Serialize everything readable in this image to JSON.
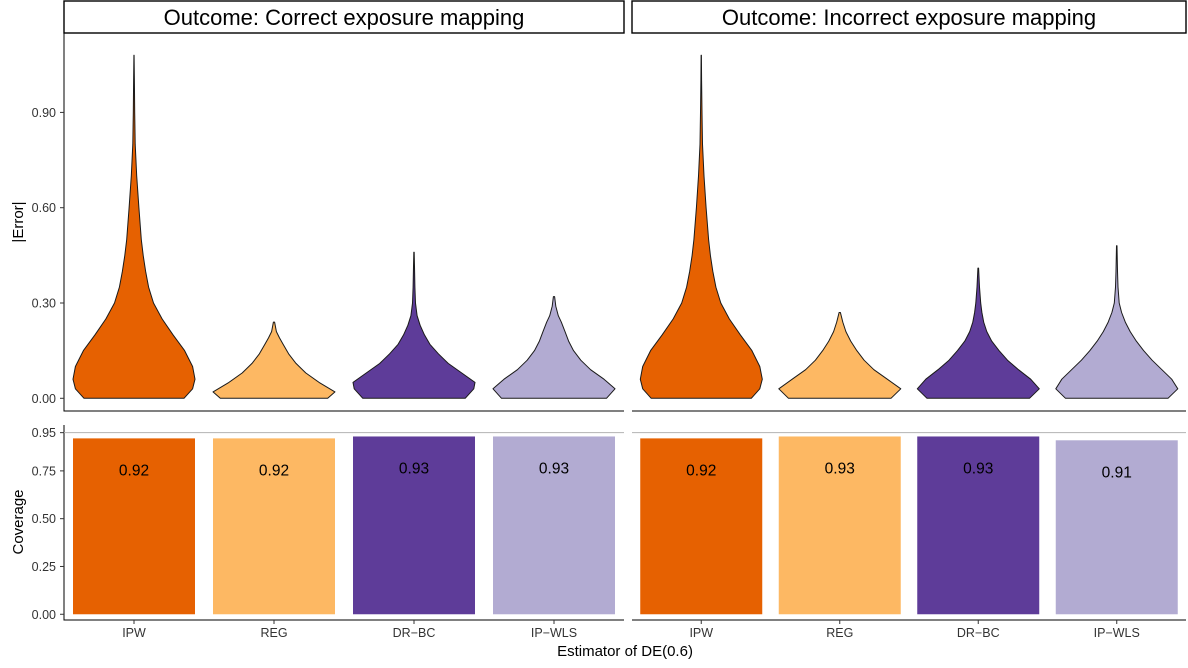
{
  "chart_data": {
    "type": "faceted violin and bar",
    "facets": [
      {
        "title": "Outcome: Correct exposure mapping"
      },
      {
        "title": "Outcome: Incorrect exposure mapping"
      }
    ],
    "categories": [
      "IPW",
      "REG",
      "DR−BC",
      "IP−WLS"
    ],
    "colors": [
      "#e66101",
      "#fdb863",
      "#5e3c99",
      "#b2abd2"
    ],
    "xlabel": "Estimator of DE(0.6)",
    "violin_panel": {
      "ylabel": "|Error|",
      "ylim": [
        -0.04,
        1.15
      ],
      "yticks": [
        "0.00",
        "0.30",
        "0.60",
        "0.90"
      ],
      "series": [
        [
          {
            "max": 1.08,
            "profile": [
              [
                0,
                0.82
              ],
              [
                0.03,
                0.96
              ],
              [
                0.06,
                1.0
              ],
              [
                0.1,
                0.96
              ],
              [
                0.15,
                0.83
              ],
              [
                0.2,
                0.64
              ],
              [
                0.25,
                0.46
              ],
              [
                0.3,
                0.32
              ],
              [
                0.35,
                0.24
              ],
              [
                0.4,
                0.19
              ],
              [
                0.45,
                0.15
              ],
              [
                0.5,
                0.12
              ],
              [
                0.6,
                0.08
              ],
              [
                0.7,
                0.045
              ],
              [
                0.8,
                0.02
              ],
              [
                0.9,
                0.012
              ],
              [
                1.0,
                0.006
              ],
              [
                1.08,
                0.002
              ]
            ]
          },
          {
            "max": 0.24,
            "profile": [
              [
                0,
                0.88
              ],
              [
                0.02,
                1.0
              ],
              [
                0.05,
                0.74
              ],
              [
                0.08,
                0.52
              ],
              [
                0.11,
                0.36
              ],
              [
                0.14,
                0.24
              ],
              [
                0.17,
                0.15
              ],
              [
                0.19,
                0.09
              ],
              [
                0.21,
                0.04
              ],
              [
                0.24,
                0.01
              ]
            ]
          },
          {
            "max": 0.46,
            "profile": [
              [
                0,
                0.84
              ],
              [
                0.03,
                0.98
              ],
              [
                0.05,
                1.0
              ],
              [
                0.08,
                0.78
              ],
              [
                0.11,
                0.56
              ],
              [
                0.14,
                0.4
              ],
              [
                0.17,
                0.26
              ],
              [
                0.2,
                0.17
              ],
              [
                0.23,
                0.1
              ],
              [
                0.26,
                0.05
              ],
              [
                0.3,
                0.025
              ],
              [
                0.35,
                0.015
              ],
              [
                0.4,
                0.01
              ],
              [
                0.46,
                0.004
              ]
            ]
          },
          {
            "max": 0.32,
            "profile": [
              [
                0,
                0.86
              ],
              [
                0.03,
                1.0
              ],
              [
                0.06,
                0.82
              ],
              [
                0.09,
                0.6
              ],
              [
                0.12,
                0.44
              ],
              [
                0.15,
                0.32
              ],
              [
                0.18,
                0.24
              ],
              [
                0.21,
                0.18
              ],
              [
                0.24,
                0.12
              ],
              [
                0.26,
                0.07
              ],
              [
                0.29,
                0.03
              ],
              [
                0.32,
                0.01
              ]
            ]
          }
        ],
        [
          {
            "max": 1.08,
            "profile": [
              [
                0,
                0.82
              ],
              [
                0.03,
                0.96
              ],
              [
                0.06,
                1.0
              ],
              [
                0.1,
                0.96
              ],
              [
                0.15,
                0.83
              ],
              [
                0.2,
                0.64
              ],
              [
                0.25,
                0.46
              ],
              [
                0.3,
                0.32
              ],
              [
                0.35,
                0.24
              ],
              [
                0.4,
                0.19
              ],
              [
                0.45,
                0.15
              ],
              [
                0.5,
                0.12
              ],
              [
                0.6,
                0.08
              ],
              [
                0.7,
                0.045
              ],
              [
                0.8,
                0.02
              ],
              [
                0.9,
                0.012
              ],
              [
                1.0,
                0.006
              ],
              [
                1.08,
                0.002
              ]
            ]
          },
          {
            "max": 0.27,
            "profile": [
              [
                0,
                0.84
              ],
              [
                0.03,
                1.0
              ],
              [
                0.06,
                0.78
              ],
              [
                0.09,
                0.56
              ],
              [
                0.12,
                0.4
              ],
              [
                0.15,
                0.28
              ],
              [
                0.18,
                0.18
              ],
              [
                0.21,
                0.1
              ],
              [
                0.24,
                0.05
              ],
              [
                0.27,
                0.01
              ]
            ]
          },
          {
            "max": 0.41,
            "profile": [
              [
                0,
                0.84
              ],
              [
                0.03,
                1.0
              ],
              [
                0.06,
                0.86
              ],
              [
                0.09,
                0.66
              ],
              [
                0.12,
                0.48
              ],
              [
                0.15,
                0.34
              ],
              [
                0.18,
                0.22
              ],
              [
                0.21,
                0.14
              ],
              [
                0.24,
                0.09
              ],
              [
                0.27,
                0.06
              ],
              [
                0.3,
                0.04
              ],
              [
                0.35,
                0.02
              ],
              [
                0.41,
                0.005
              ]
            ]
          },
          {
            "max": 0.48,
            "profile": [
              [
                0,
                0.84
              ],
              [
                0.03,
                1.0
              ],
              [
                0.06,
                0.9
              ],
              [
                0.09,
                0.74
              ],
              [
                0.12,
                0.58
              ],
              [
                0.15,
                0.44
              ],
              [
                0.18,
                0.32
              ],
              [
                0.21,
                0.22
              ],
              [
                0.24,
                0.14
              ],
              [
                0.27,
                0.08
              ],
              [
                0.3,
                0.04
              ],
              [
                0.35,
                0.02
              ],
              [
                0.4,
                0.012
              ],
              [
                0.48,
                0.004
              ]
            ]
          }
        ]
      ]
    },
    "coverage_panel": {
      "ylabel": "Coverage",
      "ylim": [
        -0.03,
        0.99
      ],
      "yticks": [
        "0.00",
        "0.25",
        "0.50",
        "0.75",
        "0.95"
      ],
      "reference_line": 0.95,
      "series": [
        {
          "name": "Outcome: Correct exposure mapping",
          "values": [
            0.92,
            0.92,
            0.93,
            0.93
          ],
          "labels": [
            "0.92",
            "0.92",
            "0.93",
            "0.93"
          ]
        },
        {
          "name": "Outcome: Incorrect exposure mapping",
          "values": [
            0.92,
            0.93,
            0.93,
            0.91
          ],
          "labels": [
            "0.92",
            "0.93",
            "0.93",
            "0.91"
          ]
        }
      ]
    }
  }
}
